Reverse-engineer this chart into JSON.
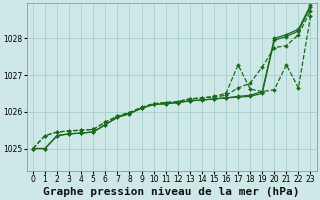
{
  "title": "Graphe pression niveau de la mer (hPa)",
  "xlabel_hours": [
    0,
    1,
    2,
    3,
    4,
    5,
    6,
    7,
    8,
    9,
    10,
    11,
    12,
    13,
    14,
    15,
    16,
    17,
    18,
    19,
    20,
    21,
    22,
    23
  ],
  "ylim": [
    1024.4,
    1028.95
  ],
  "yticks": [
    1025,
    1026,
    1027,
    1028
  ],
  "background_color": "#cde8e6",
  "grid_color": "#a0cac8",
  "line_color": "#1a6b1a",
  "series": [
    [
      1025.0,
      1025.0,
      1025.35,
      1025.4,
      1025.42,
      1025.45,
      1025.65,
      1025.85,
      1025.95,
      1026.1,
      1026.2,
      1026.22,
      1026.25,
      1026.3,
      1026.32,
      1026.35,
      1026.38,
      1026.4,
      1026.42,
      1026.5,
      1027.95,
      1028.05,
      1028.2,
      1028.85
    ],
    [
      1025.0,
      1025.0,
      1025.35,
      1025.4,
      1025.42,
      1025.45,
      1025.65,
      1025.85,
      1025.95,
      1026.1,
      1026.2,
      1026.22,
      1026.25,
      1026.3,
      1026.32,
      1026.35,
      1026.38,
      1026.42,
      1026.45,
      1026.55,
      1028.0,
      1028.1,
      1028.25,
      1028.9
    ],
    [
      1025.0,
      1025.35,
      1025.45,
      1025.48,
      1025.5,
      1025.52,
      1025.72,
      1025.88,
      1025.98,
      1026.12,
      1026.22,
      1026.25,
      1026.28,
      1026.35,
      1026.38,
      1026.4,
      1026.45,
      1026.65,
      1026.78,
      1027.22,
      1027.75,
      1027.8,
      1028.1,
      1028.75
    ],
    [
      1025.0,
      1025.35,
      1025.45,
      1025.48,
      1025.5,
      1025.52,
      1025.72,
      1025.88,
      1025.98,
      1026.12,
      1026.22,
      1026.25,
      1026.28,
      1026.35,
      1026.38,
      1026.42,
      1026.5,
      1027.28,
      1026.62,
      1026.55,
      1026.6,
      1027.28,
      1026.65,
      1028.6
    ]
  ],
  "line_styles": [
    "solid",
    "solid",
    "dashed",
    "dashed"
  ],
  "marker": "D",
  "markersize": 2.0,
  "linewidth": 0.9,
  "title_fontsize": 8,
  "tick_fontsize": 5.5
}
